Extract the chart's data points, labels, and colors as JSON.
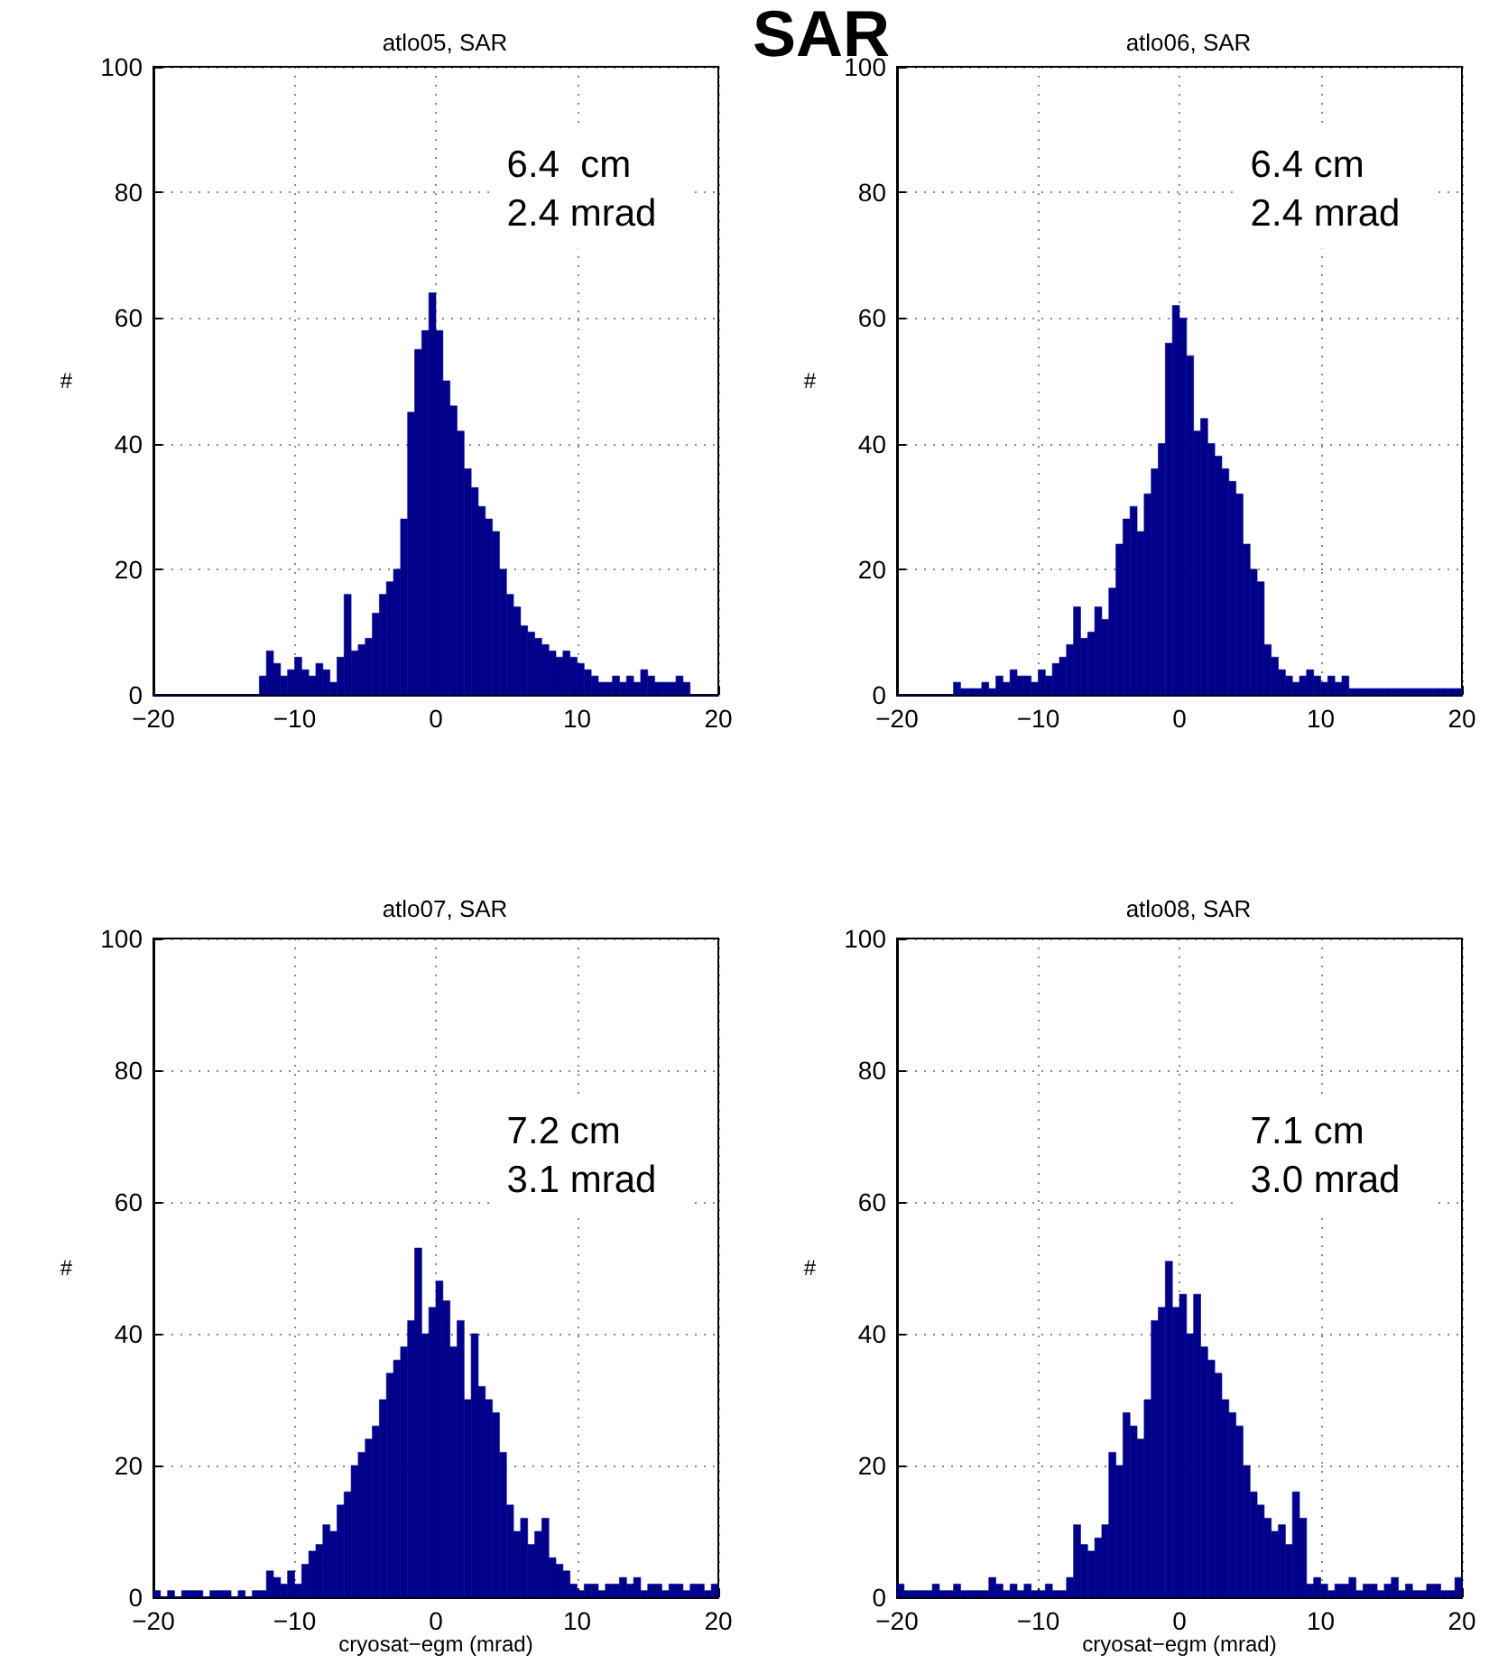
{
  "chart_data": [
    {
      "type": "other",
      "title": "SAR"
    },
    {
      "type": "histogram",
      "title": "atlo05, SAR",
      "ylabel": "#",
      "color": "#00008b",
      "grid": true,
      "annotations": [
        "6.4  cm",
        "2.4 mrad"
      ],
      "xlim": [
        -20,
        20
      ],
      "xticks": [
        -20,
        -10,
        0,
        10,
        20
      ],
      "ylim": [
        0,
        100
      ],
      "yticks": [
        0,
        20,
        40,
        60,
        80,
        100
      ],
      "bins": [
        -20,
        -19.5,
        -19,
        -18.5,
        -18,
        -17.5,
        -17,
        -16.5,
        -16,
        -15.5,
        -15,
        -14.5,
        -14,
        -13.5,
        -13,
        -12.5,
        -12,
        -11.5,
        -11,
        -10.5,
        -10,
        -9.5,
        -9,
        -8.5,
        -8,
        -7.5,
        -7,
        -6.5,
        -6,
        -5.5,
        -5,
        -4.5,
        -4,
        -3.5,
        -3,
        -2.5,
        -2,
        -1.5,
        -1,
        -0.5,
        0,
        0.5,
        1,
        1.5,
        2,
        2.5,
        3,
        3.5,
        4,
        4.5,
        5,
        5.5,
        6,
        6.5,
        7,
        7.5,
        8,
        8.5,
        9,
        9.5,
        10,
        10.5,
        11,
        11.5,
        12,
        12.5,
        13,
        13.5,
        14,
        14.5,
        15,
        15.5,
        16,
        16.5,
        17,
        17.5,
        18,
        18.5,
        19,
        19.5,
        20
      ],
      "values": [
        0,
        0,
        0,
        0,
        0,
        0,
        0,
        0,
        0,
        0,
        0,
        0,
        0,
        0,
        0,
        3,
        7,
        5,
        3,
        4,
        6,
        4,
        3,
        5,
        4,
        2,
        6,
        16,
        7,
        8,
        9,
        13,
        16,
        18,
        20,
        28,
        45,
        55,
        58,
        64,
        58,
        50,
        46,
        42,
        36,
        33,
        30,
        28,
        26,
        20,
        16,
        14,
        11,
        10,
        9,
        8,
        7,
        6,
        7,
        6,
        5,
        4,
        3,
        2,
        2,
        3,
        2,
        3,
        2,
        4,
        3,
        2,
        2,
        2,
        3,
        2,
        0,
        0,
        0,
        0
      ]
    },
    {
      "type": "histogram",
      "title": "atlo06, SAR",
      "ylabel": "#",
      "color": "#00008b",
      "grid": true,
      "annotations": [
        "6.4 cm",
        "2.4 mrad"
      ],
      "xlim": [
        -20,
        20
      ],
      "xticks": [
        -20,
        -10,
        0,
        10,
        20
      ],
      "ylim": [
        0,
        100
      ],
      "yticks": [
        0,
        20,
        40,
        60,
        80,
        100
      ],
      "bins": [
        -20,
        -19.5,
        -19,
        -18.5,
        -18,
        -17.5,
        -17,
        -16.5,
        -16,
        -15.5,
        -15,
        -14.5,
        -14,
        -13.5,
        -13,
        -12.5,
        -12,
        -11.5,
        -11,
        -10.5,
        -10,
        -9.5,
        -9,
        -8.5,
        -8,
        -7.5,
        -7,
        -6.5,
        -6,
        -5.5,
        -5,
        -4.5,
        -4,
        -3.5,
        -3,
        -2.5,
        -2,
        -1.5,
        -1,
        -0.5,
        0,
        0.5,
        1,
        1.5,
        2,
        2.5,
        3,
        3.5,
        4,
        4.5,
        5,
        5.5,
        6,
        6.5,
        7,
        7.5,
        8,
        8.5,
        9,
        9.5,
        10,
        10.5,
        11,
        11.5,
        12,
        12.5,
        13,
        13.5,
        14,
        14.5,
        15,
        15.5,
        16,
        16.5,
        17,
        17.5,
        18,
        18.5,
        19,
        19.5,
        20
      ],
      "values": [
        0,
        0,
        0,
        0,
        0,
        0,
        0,
        0,
        2,
        1,
        1,
        1,
        2,
        1,
        3,
        2,
        4,
        3,
        3,
        2,
        4,
        3,
        5,
        6,
        8,
        14,
        9,
        10,
        14,
        12,
        17,
        24,
        28,
        30,
        26,
        32,
        36,
        40,
        56,
        62,
        60,
        54,
        42,
        44,
        40,
        38,
        36,
        34,
        32,
        24,
        20,
        18,
        8,
        6,
        4,
        3,
        2,
        3,
        4,
        3,
        2,
        3,
        2,
        3,
        1,
        1,
        1,
        1,
        1,
        1,
        1,
        1,
        1,
        1,
        1,
        1,
        1,
        1,
        1,
        1
      ]
    },
    {
      "type": "histogram",
      "title": "atlo07, SAR",
      "xlabel": "cryosat−egm (mrad)",
      "ylabel": "#",
      "color": "#00008b",
      "grid": true,
      "annotations": [
        "7.2 cm",
        "3.1 mrad"
      ],
      "xlim": [
        -20,
        20
      ],
      "xticks": [
        -20,
        -10,
        0,
        10,
        20
      ],
      "ylim": [
        0,
        100
      ],
      "yticks": [
        0,
        20,
        40,
        60,
        80,
        100
      ],
      "bins": [
        -20,
        -19.5,
        -19,
        -18.5,
        -18,
        -17.5,
        -17,
        -16.5,
        -16,
        -15.5,
        -15,
        -14.5,
        -14,
        -13.5,
        -13,
        -12.5,
        -12,
        -11.5,
        -11,
        -10.5,
        -10,
        -9.5,
        -9,
        -8.5,
        -8,
        -7.5,
        -7,
        -6.5,
        -6,
        -5.5,
        -5,
        -4.5,
        -4,
        -3.5,
        -3,
        -2.5,
        -2,
        -1.5,
        -1,
        -0.5,
        0,
        0.5,
        1,
        1.5,
        2,
        2.5,
        3,
        3.5,
        4,
        4.5,
        5,
        5.5,
        6,
        6.5,
        7,
        7.5,
        8,
        8.5,
        9,
        9.5,
        10,
        10.5,
        11,
        11.5,
        12,
        12.5,
        13,
        13.5,
        14,
        14.5,
        15,
        15.5,
        16,
        16.5,
        17,
        17.5,
        18,
        18.5,
        19,
        19.5,
        20
      ],
      "values": [
        1,
        0,
        1,
        0,
        1,
        1,
        1,
        0,
        1,
        1,
        1,
        0,
        1,
        0,
        1,
        1,
        4,
        3,
        2,
        4,
        2,
        5,
        7,
        8,
        11,
        10,
        14,
        16,
        20,
        22,
        24,
        26,
        30,
        34,
        36,
        38,
        42,
        53,
        40,
        44,
        48,
        45,
        38,
        42,
        30,
        40,
        32,
        30,
        28,
        22,
        14,
        10,
        12,
        8,
        10,
        12,
        6,
        5,
        4,
        2,
        1,
        2,
        2,
        1,
        2,
        2,
        3,
        2,
        3,
        1,
        2,
        2,
        1,
        2,
        2,
        1,
        2,
        2,
        1,
        2
      ]
    },
    {
      "type": "histogram",
      "title": "atlo08, SAR",
      "xlabel": "cryosat−egm (mrad)",
      "ylabel": "#",
      "color": "#00008b",
      "grid": true,
      "annotations": [
        "7.1 cm",
        "3.0 mrad"
      ],
      "xlim": [
        -20,
        20
      ],
      "xticks": [
        -20,
        -10,
        0,
        10,
        20
      ],
      "ylim": [
        0,
        100
      ],
      "yticks": [
        0,
        20,
        40,
        60,
        80,
        100
      ],
      "bins": [
        -20,
        -19.5,
        -19,
        -18.5,
        -18,
        -17.5,
        -17,
        -16.5,
        -16,
        -15.5,
        -15,
        -14.5,
        -14,
        -13.5,
        -13,
        -12.5,
        -12,
        -11.5,
        -11,
        -10.5,
        -10,
        -9.5,
        -9,
        -8.5,
        -8,
        -7.5,
        -7,
        -6.5,
        -6,
        -5.5,
        -5,
        -4.5,
        -4,
        -3.5,
        -3,
        -2.5,
        -2,
        -1.5,
        -1,
        -0.5,
        0,
        0.5,
        1,
        1.5,
        2,
        2.5,
        3,
        3.5,
        4,
        4.5,
        5,
        5.5,
        6,
        6.5,
        7,
        7.5,
        8,
        8.5,
        9,
        9.5,
        10,
        10.5,
        11,
        11.5,
        12,
        12.5,
        13,
        13.5,
        14,
        14.5,
        15,
        15.5,
        16,
        16.5,
        17,
        17.5,
        18,
        18.5,
        19,
        19.5,
        20
      ],
      "values": [
        2,
        1,
        1,
        1,
        1,
        2,
        1,
        1,
        2,
        1,
        1,
        1,
        1,
        3,
        2,
        1,
        2,
        1,
        2,
        1,
        1,
        2,
        1,
        1,
        3,
        11,
        8,
        7,
        9,
        11,
        22,
        20,
        28,
        26,
        24,
        30,
        42,
        44,
        51,
        44,
        46,
        40,
        46,
        38,
        36,
        34,
        30,
        28,
        26,
        20,
        16,
        14,
        12,
        10,
        11,
        8,
        16,
        12,
        2,
        3,
        2,
        1,
        2,
        2,
        3,
        1,
        2,
        2,
        1,
        2,
        3,
        1,
        2,
        1,
        1,
        2,
        2,
        1,
        1,
        3
      ]
    }
  ]
}
